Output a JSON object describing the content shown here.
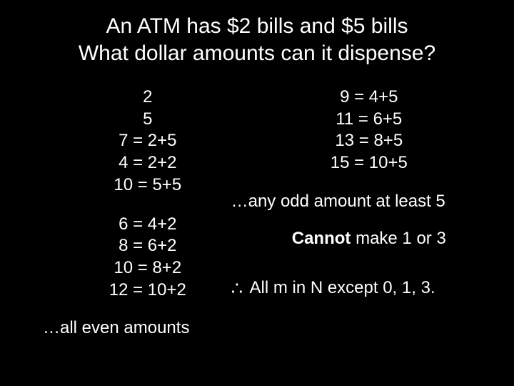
{
  "colors": {
    "background": "#000000",
    "text": "#ffffff"
  },
  "typography": {
    "title_fontsize": 30,
    "body_fontsize": 24,
    "font_family": "Arial"
  },
  "title": {
    "line1": "An ATM has $2 bills and $5 bills",
    "line2": "What dollar amounts can it dispense?"
  },
  "left": {
    "block1": [
      "2",
      "5",
      "7 = 2+5",
      "4 = 2+2",
      "10 = 5+5"
    ],
    "block2": [
      "6 = 4+2",
      "8 = 6+2",
      "10 = 8+2",
      "12 = 10+2"
    ],
    "conclusion": "…all even amounts"
  },
  "right": {
    "block1": [
      "9 = 4+5",
      "11 = 6+5",
      "13 = 8+5",
      "15 = 10+5"
    ],
    "odd_line": "…any odd amount at least 5",
    "cannot_bold": "Cannot",
    "cannot_rest": " make 1 or 3",
    "therefore_symbol": "∴",
    "therefore_text": " All m in N except 0, 1, 3."
  }
}
